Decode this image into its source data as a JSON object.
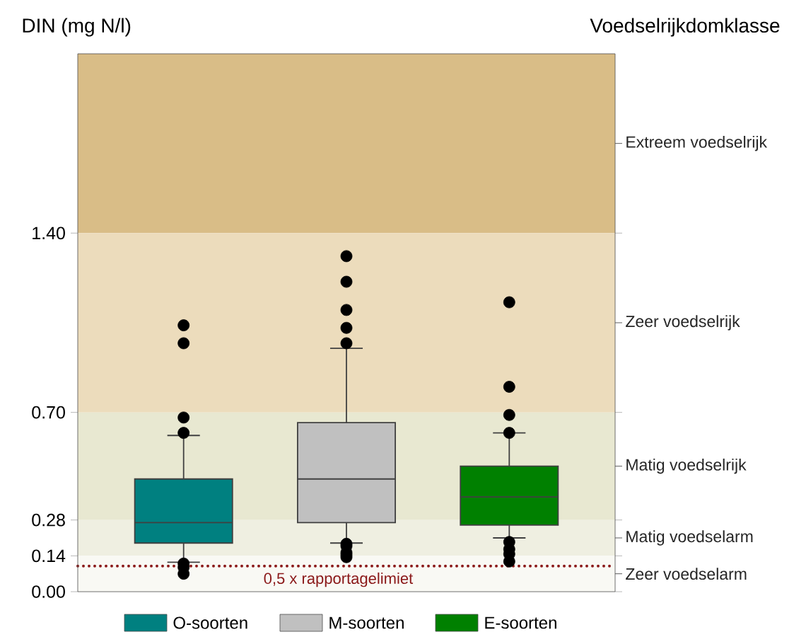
{
  "chart_data": {
    "type": "box",
    "ylabel": "DIN (mg N/l)",
    "annotations": [
      "Voedselrijkdomklasse"
    ],
    "categories": [
      "O-soorten",
      "M-soorten",
      "E-soorten"
    ],
    "colors": [
      "#008080",
      "#c0c0c0",
      "#008000"
    ],
    "boxes": [
      {
        "low": 0.115,
        "q1": 0.19,
        "median": 0.27,
        "q3": 0.44,
        "high": 0.61,
        "outliers": [
          1.04,
          0.97,
          0.68,
          0.62,
          0.11,
          0.095,
          0.07
        ]
      },
      {
        "low": 0.19,
        "q1": 0.27,
        "median": 0.44,
        "q3": 0.66,
        "high": 0.95,
        "outliers": [
          1.31,
          1.21,
          1.1,
          1.03,
          0.97,
          0.187,
          0.178,
          0.153,
          0.144,
          0.135
        ]
      },
      {
        "low": 0.21,
        "q1": 0.26,
        "median": 0.37,
        "q3": 0.49,
        "high": 0.62,
        "outliers": [
          1.13,
          0.8,
          0.69,
          0.62,
          0.194,
          0.166,
          0.147,
          0.118
        ]
      }
    ],
    "tick_labels": "y",
    "ylim": [
      0,
      2.1
    ],
    "yticks": [
      {
        "value": 0,
        "label": "0.00"
      },
      0.14,
      0.28,
      {
        "value": 0.7,
        "label": "0.70"
      },
      {
        "value": 1.4,
        "label": "1.40"
      }
    ],
    "bands": [
      {
        "axis": "y",
        "from": 1.4,
        "to": 2.1,
        "label": "Extreem voedselrijk",
        "color": "#d9bd87"
      },
      {
        "axis": "y",
        "from": 0.7,
        "to": 1.4,
        "label": "Zeer voedselrijk",
        "color": "#ecdcbc"
      },
      {
        "axis": "y",
        "from": 0.28,
        "to": 0.7,
        "label": "Matig voedselrijk",
        "color": "#e8e8d1"
      },
      {
        "axis": "y",
        "from": 0.14,
        "to": 0.28,
        "label": "Matig voedselarm",
        "color": "#efefe1"
      },
      {
        "axis": "y",
        "from": 0,
        "to": 0.14,
        "label": "Zeer voedselarm",
        "color": "#f9f9f4"
      }
    ],
    "ref_lines": [
      {
        "axis": "y",
        "value": 0.1,
        "label": "0,5 x rapportagelimiet",
        "color": "#8b1a1a",
        "line_style": "dotted"
      }
    ],
    "legend": "bottom"
  }
}
